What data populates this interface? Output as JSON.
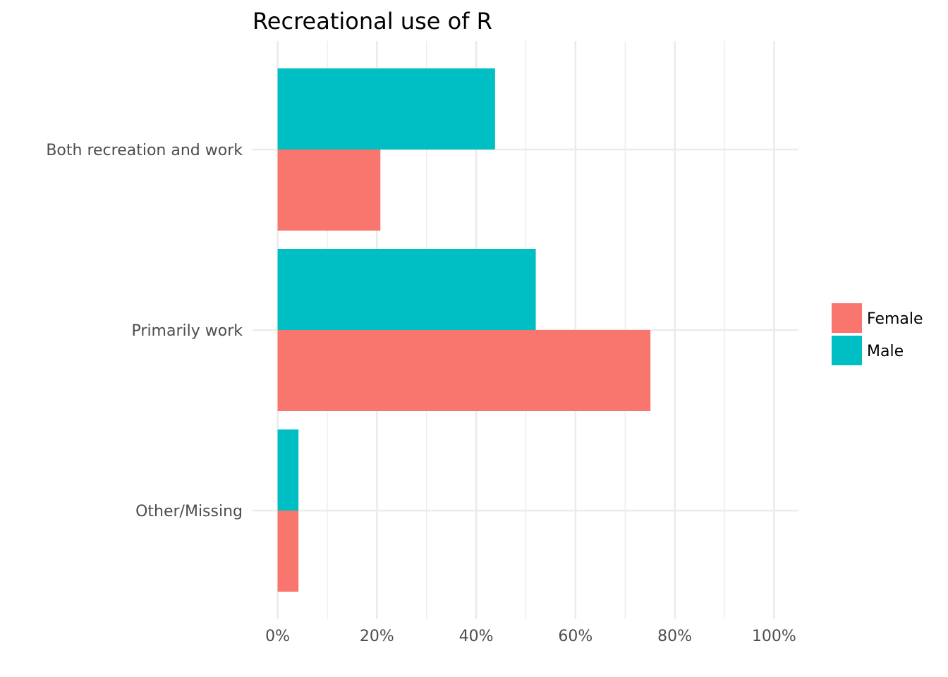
{
  "chart_data": {
    "type": "bar",
    "orientation": "horizontal",
    "title": "Recreational use of R",
    "xlabel": "",
    "ylabel": "",
    "categories": [
      "Both recreation and work",
      "Primarily work",
      "Other/Missing"
    ],
    "series": [
      {
        "name": "Female",
        "color": "#F8766D",
        "values": [
          0.207,
          0.751,
          0.042
        ]
      },
      {
        "name": "Male",
        "color": "#00BFC4",
        "values": [
          0.438,
          0.52,
          0.042
        ]
      }
    ],
    "xlim": [
      0,
      1
    ],
    "x_ticks": [
      0,
      0.2,
      0.4,
      0.6,
      0.8,
      1.0
    ],
    "x_tick_labels": [
      "0%",
      "20%",
      "40%",
      "60%",
      "80%",
      "100%"
    ],
    "grid": true,
    "legend": {
      "placement": "right",
      "entries": [
        "Female",
        "Male"
      ]
    }
  }
}
